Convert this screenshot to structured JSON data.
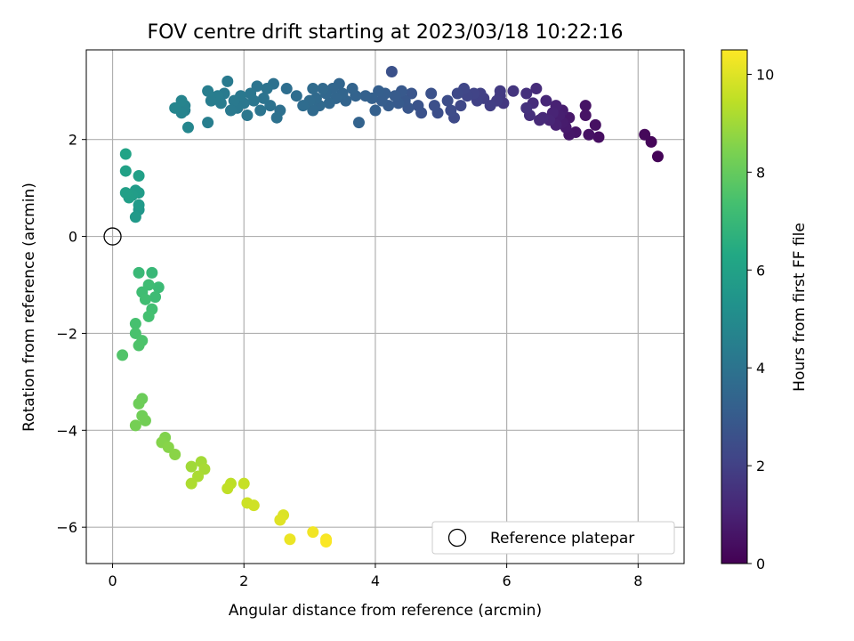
{
  "chart_data": {
    "type": "scatter",
    "title": "FOV centre drift starting at 2023/03/18 10:22:16",
    "xlabel": "Angular distance from reference (arcmin)",
    "ylabel": "Rotation from reference (arcmin)",
    "xlim": [
      -0.4,
      8.7
    ],
    "ylim": [
      -6.75,
      3.85
    ],
    "xticks": [
      0,
      2,
      4,
      6,
      8
    ],
    "yticks": [
      -6,
      -4,
      -2,
      0,
      2
    ],
    "xtick_labels": [
      "0",
      "2",
      "4",
      "6",
      "8"
    ],
    "ytick_labels": [
      "−6",
      "−4",
      "−2",
      "0",
      "2"
    ],
    "grid": true,
    "legend": {
      "placement": "lower-right",
      "entries": [
        "Reference platepar"
      ]
    },
    "colorbar": {
      "label": "Hours from first FF file",
      "range": [
        0,
        10.5
      ],
      "ticks": [
        0,
        2,
        4,
        6,
        8,
        10
      ],
      "tick_labels": [
        "0",
        "2",
        "4",
        "6",
        "8",
        "10"
      ],
      "colormap": "viridis"
    },
    "reference_point": {
      "x": 0,
      "y": 0,
      "label": "Reference platepar"
    },
    "points": [
      [
        8.3,
        1.65,
        0.1
      ],
      [
        8.2,
        1.95,
        0.15
      ],
      [
        8.1,
        2.1,
        0.2
      ],
      [
        7.4,
        2.05,
        0.4
      ],
      [
        7.35,
        2.3,
        0.45
      ],
      [
        7.25,
        2.1,
        0.5
      ],
      [
        7.2,
        2.7,
        0.55
      ],
      [
        7.2,
        2.5,
        0.55
      ],
      [
        7.05,
        2.15,
        0.6
      ],
      [
        6.95,
        2.1,
        0.65
      ],
      [
        6.95,
        2.45,
        0.7
      ],
      [
        6.9,
        2.25,
        0.75
      ],
      [
        6.85,
        2.35,
        0.8
      ],
      [
        6.85,
        2.6,
        0.85
      ],
      [
        6.8,
        2.5,
        0.9
      ],
      [
        6.75,
        2.3,
        0.95
      ],
      [
        6.75,
        2.7,
        1.0
      ],
      [
        6.7,
        2.55,
        1.05
      ],
      [
        6.65,
        2.4,
        1.1
      ],
      [
        6.6,
        2.8,
        1.15
      ],
      [
        6.55,
        2.45,
        1.2
      ],
      [
        6.5,
        2.4,
        1.25
      ],
      [
        6.45,
        3.05,
        1.3
      ],
      [
        6.4,
        2.75,
        1.35
      ],
      [
        6.35,
        2.5,
        1.4
      ],
      [
        6.3,
        2.95,
        1.45
      ],
      [
        6.3,
        2.65,
        1.5
      ],
      [
        6.1,
        3.0,
        1.6
      ],
      [
        5.95,
        2.75,
        1.7
      ],
      [
        5.9,
        2.9,
        1.75
      ],
      [
        5.9,
        3.0,
        1.8
      ],
      [
        5.85,
        2.8,
        1.85
      ],
      [
        5.75,
        2.7,
        1.9
      ],
      [
        5.65,
        2.85,
        1.95
      ],
      [
        5.6,
        2.95,
        2.0
      ],
      [
        5.55,
        2.8,
        2.05
      ],
      [
        5.5,
        2.95,
        2.1
      ],
      [
        5.4,
        2.9,
        2.15
      ],
      [
        5.35,
        3.05,
        2.2
      ],
      [
        5.3,
        2.7,
        2.25
      ],
      [
        5.25,
        2.95,
        2.3
      ],
      [
        5.2,
        2.45,
        2.35
      ],
      [
        5.15,
        2.6,
        2.4
      ],
      [
        5.1,
        2.8,
        2.45
      ],
      [
        4.95,
        2.55,
        2.5
      ],
      [
        4.9,
        2.7,
        2.55
      ],
      [
        4.85,
        2.95,
        2.6
      ],
      [
        4.7,
        2.55,
        2.65
      ],
      [
        4.65,
        2.7,
        2.7
      ],
      [
        4.55,
        2.95,
        2.75
      ],
      [
        4.5,
        2.65,
        2.8
      ],
      [
        4.45,
        2.8,
        2.85
      ],
      [
        4.4,
        3.0,
        2.9
      ],
      [
        4.35,
        2.75,
        2.95
      ],
      [
        4.3,
        2.9,
        3.0
      ],
      [
        4.25,
        3.4,
        2.6
      ],
      [
        4.2,
        2.7,
        3.05
      ],
      [
        4.15,
        2.95,
        3.1
      ],
      [
        4.1,
        2.8,
        3.1
      ],
      [
        4.05,
        3.0,
        3.15
      ],
      [
        4.0,
        2.6,
        3.2
      ],
      [
        3.95,
        2.85,
        3.2
      ],
      [
        3.85,
        2.9,
        3.25
      ],
      [
        3.75,
        2.35,
        3.3
      ],
      [
        3.7,
        2.9,
        3.3
      ],
      [
        3.65,
        3.05,
        3.35
      ],
      [
        3.55,
        2.8,
        3.35
      ],
      [
        3.5,
        2.95,
        3.4
      ],
      [
        3.45,
        3.15,
        3.4
      ],
      [
        3.4,
        2.85,
        3.45
      ],
      [
        3.35,
        3.05,
        3.45
      ],
      [
        3.3,
        2.75,
        3.5
      ],
      [
        3.25,
        2.95,
        3.5
      ],
      [
        3.2,
        3.05,
        3.55
      ],
      [
        3.15,
        2.7,
        3.55
      ],
      [
        3.1,
        2.85,
        3.6
      ],
      [
        3.05,
        2.6,
        3.6
      ],
      [
        3.05,
        3.05,
        3.65
      ],
      [
        3.0,
        2.8,
        3.65
      ],
      [
        2.9,
        2.7,
        3.7
      ],
      [
        2.8,
        2.9,
        3.75
      ],
      [
        2.65,
        3.05,
        3.8
      ],
      [
        2.55,
        2.6,
        3.85
      ],
      [
        2.5,
        2.45,
        3.9
      ],
      [
        2.45,
        3.15,
        3.9
      ],
      [
        2.4,
        2.7,
        3.95
      ],
      [
        2.35,
        3.05,
        4.0
      ],
      [
        2.3,
        2.85,
        4.0
      ],
      [
        2.25,
        2.6,
        4.05
      ],
      [
        2.2,
        3.1,
        4.05
      ],
      [
        2.15,
        2.8,
        4.1
      ],
      [
        2.1,
        2.95,
        4.1
      ],
      [
        2.05,
        2.5,
        4.15
      ],
      [
        2.0,
        2.75,
        4.15
      ],
      [
        1.95,
        2.9,
        4.2
      ],
      [
        1.9,
        2.65,
        4.2
      ],
      [
        1.85,
        2.8,
        4.25
      ],
      [
        1.8,
        2.6,
        4.25
      ],
      [
        1.75,
        3.2,
        4.3
      ],
      [
        1.7,
        2.95,
        4.3
      ],
      [
        1.65,
        2.75,
        4.35
      ],
      [
        1.6,
        2.9,
        4.35
      ],
      [
        1.55,
        2.85,
        4.4
      ],
      [
        1.5,
        2.8,
        4.4
      ],
      [
        1.45,
        2.35,
        4.45
      ],
      [
        1.45,
        3.0,
        4.45
      ],
      [
        1.1,
        2.6,
        4.55
      ],
      [
        1.1,
        2.7,
        4.6
      ],
      [
        1.05,
        2.55,
        4.65
      ],
      [
        1.05,
        2.8,
        4.7
      ],
      [
        0.95,
        2.65,
        4.75
      ],
      [
        1.15,
        2.25,
        4.8
      ],
      [
        0.4,
        0.55,
        5.5
      ],
      [
        0.35,
        0.4,
        5.6
      ],
      [
        0.4,
        0.65,
        5.65
      ],
      [
        0.35,
        0.95,
        5.7
      ],
      [
        0.4,
        0.9,
        5.75
      ],
      [
        0.3,
        0.85,
        5.8
      ],
      [
        0.25,
        0.8,
        5.85
      ],
      [
        0.2,
        0.9,
        5.9
      ],
      [
        0.4,
        1.25,
        5.95
      ],
      [
        0.2,
        1.35,
        6.0
      ],
      [
        0.2,
        1.7,
        6.05
      ],
      [
        0.6,
        -0.75,
        7.0
      ],
      [
        0.4,
        -0.75,
        7.05
      ],
      [
        0.7,
        -1.05,
        7.1
      ],
      [
        0.65,
        -1.25,
        7.15
      ],
      [
        0.55,
        -1.0,
        7.2
      ],
      [
        0.45,
        -1.15,
        7.2
      ],
      [
        0.5,
        -1.3,
        7.25
      ],
      [
        0.6,
        -1.5,
        7.3
      ],
      [
        0.55,
        -1.65,
        7.35
      ],
      [
        0.35,
        -1.8,
        7.4
      ],
      [
        0.35,
        -2.0,
        7.45
      ],
      [
        0.45,
        -2.15,
        7.5
      ],
      [
        0.4,
        -2.25,
        7.55
      ],
      [
        0.15,
        -2.45,
        7.6
      ],
      [
        0.45,
        -3.35,
        8.1
      ],
      [
        0.4,
        -3.45,
        8.15
      ],
      [
        0.45,
        -3.7,
        8.2
      ],
      [
        0.5,
        -3.8,
        8.25
      ],
      [
        0.35,
        -3.9,
        8.3
      ],
      [
        0.8,
        -4.15,
        8.5
      ],
      [
        0.75,
        -4.25,
        8.55
      ],
      [
        0.85,
        -4.35,
        8.6
      ],
      [
        0.95,
        -4.5,
        8.65
      ],
      [
        1.2,
        -4.75,
        9.0
      ],
      [
        1.35,
        -4.65,
        9.05
      ],
      [
        1.4,
        -4.8,
        9.1
      ],
      [
        1.3,
        -4.95,
        9.15
      ],
      [
        1.2,
        -5.1,
        9.2
      ],
      [
        1.8,
        -5.1,
        9.45
      ],
      [
        1.75,
        -5.2,
        9.5
      ],
      [
        2.0,
        -5.1,
        9.6
      ],
      [
        2.05,
        -5.5,
        9.7
      ],
      [
        2.15,
        -5.55,
        9.75
      ],
      [
        2.6,
        -5.75,
        9.95
      ],
      [
        2.55,
        -5.85,
        10.0
      ],
      [
        2.7,
        -6.25,
        10.2
      ],
      [
        3.05,
        -6.1,
        10.3
      ],
      [
        3.25,
        -6.25,
        10.4
      ],
      [
        3.25,
        -6.3,
        10.45
      ]
    ]
  }
}
